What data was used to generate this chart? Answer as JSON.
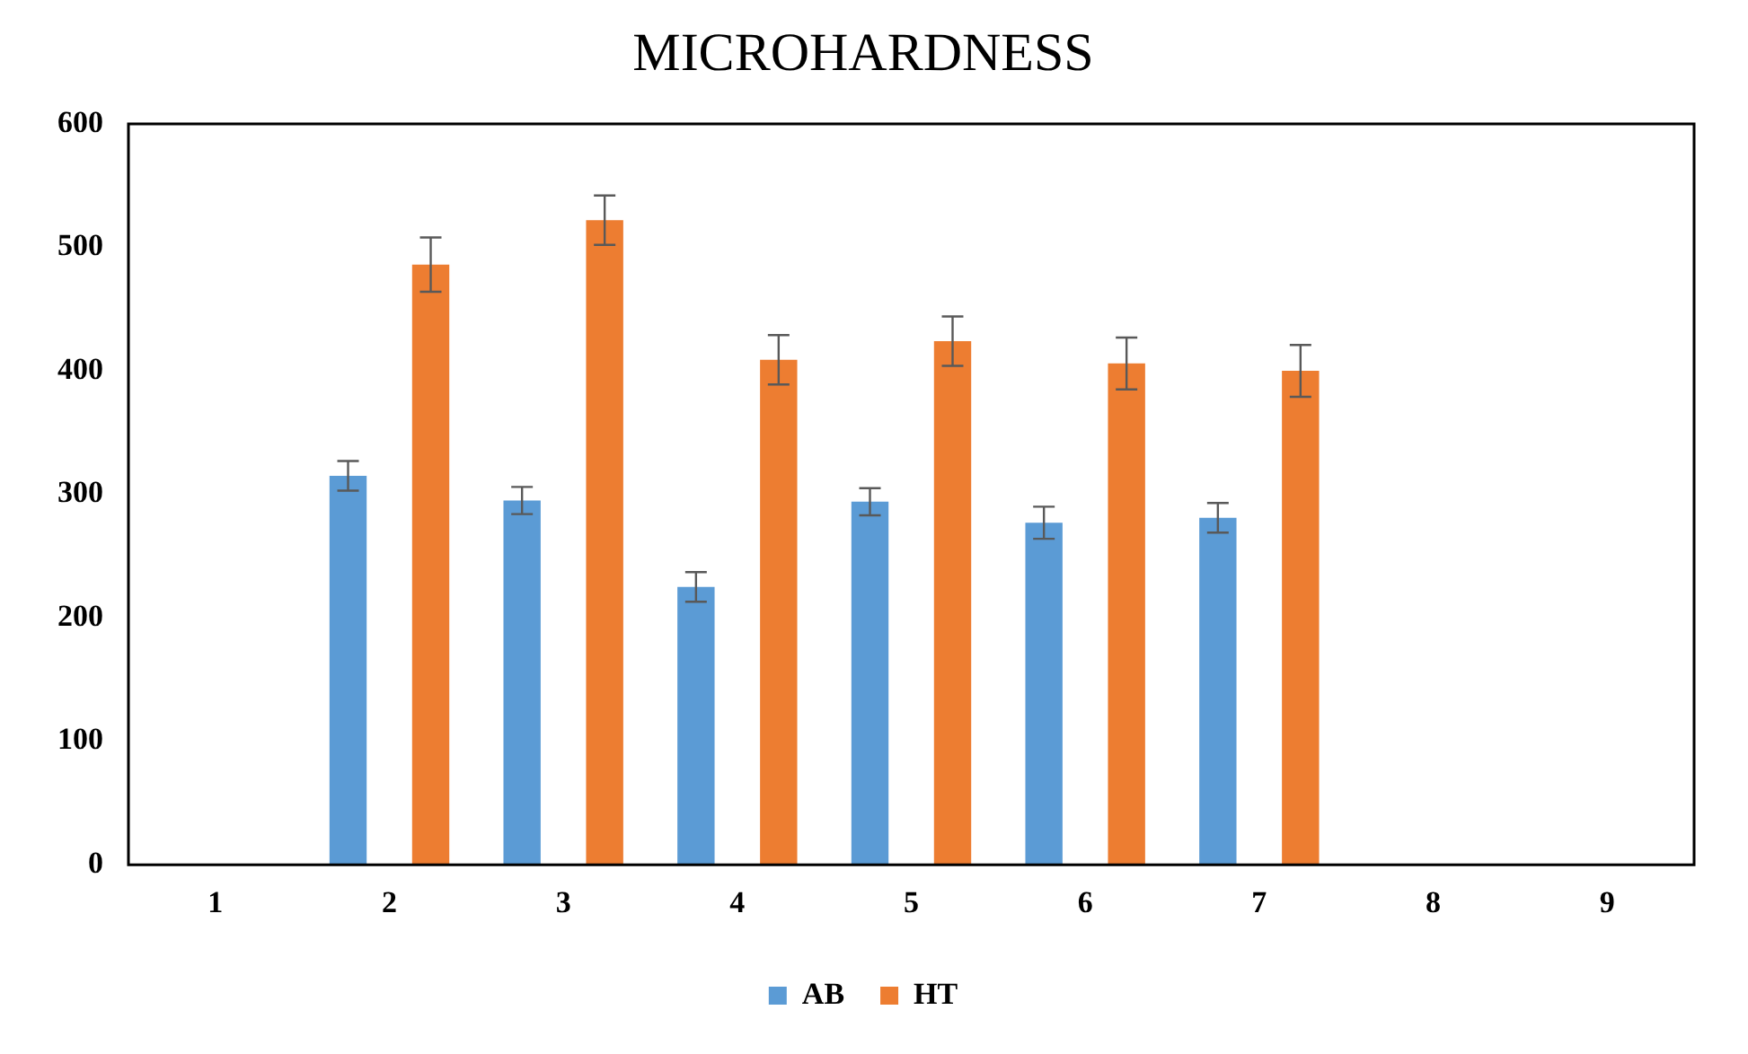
{
  "chart_data": {
    "type": "bar",
    "title": "MICROHARDNESS",
    "categories": [
      "1",
      "2",
      "3",
      "4",
      "5",
      "6",
      "7",
      "8",
      "9"
    ],
    "series": [
      {
        "name": "AB",
        "color": "#5b9bd5",
        "values": [
          null,
          315,
          295,
          225,
          294,
          277,
          281,
          null,
          null
        ],
        "errors": [
          null,
          12,
          11,
          12,
          11,
          13,
          12,
          null,
          null
        ]
      },
      {
        "name": "HT",
        "color": "#ed7d31",
        "values": [
          null,
          486,
          522,
          409,
          424,
          406,
          400,
          null,
          null
        ],
        "errors": [
          null,
          22,
          20,
          20,
          20,
          21,
          21,
          null,
          null
        ]
      }
    ],
    "ylim": [
      0,
      600
    ],
    "yticks": [
      0,
      100,
      200,
      300,
      400,
      500,
      600
    ],
    "grid": false,
    "legend": "bottom"
  }
}
